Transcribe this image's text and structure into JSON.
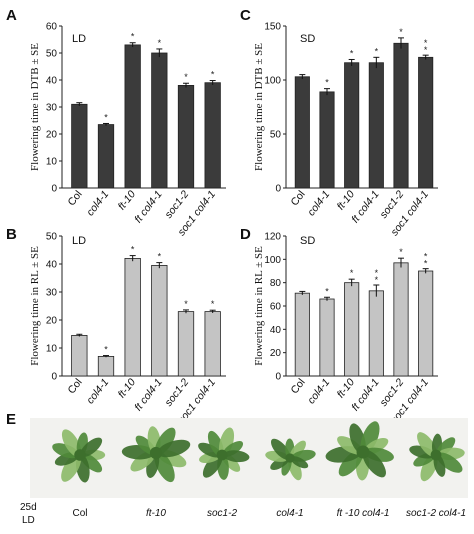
{
  "chart_data": [
    {
      "panel": "A",
      "type": "bar",
      "condition": "LD",
      "ylabel": "Flowering time in DTB ± SE",
      "ylim": [
        0,
        60
      ],
      "yticks": [
        0,
        10,
        20,
        30,
        40,
        50,
        60
      ],
      "categories": [
        {
          "text": "Col",
          "italic": false
        },
        {
          "text": "col4-1",
          "italic": true
        },
        {
          "text": "ft-10",
          "italic": true
        },
        {
          "text": "ft col4-1",
          "italic": true
        },
        {
          "text": "soc1-2",
          "italic": true
        },
        {
          "text": "soc1 col4-1",
          "italic": true
        }
      ],
      "values": [
        31,
        23.5,
        53,
        50,
        38,
        39
      ],
      "errors": [
        0.6,
        0.4,
        0.8,
        1.5,
        0.8,
        0.8
      ],
      "annotations": [
        "",
        "*",
        "*",
        "*",
        "*",
        "*"
      ],
      "color": "#3b3b3b"
    },
    {
      "panel": "C",
      "type": "bar",
      "condition": "SD",
      "ylabel": "Flowering time in DTB ± SE",
      "ylim": [
        0,
        150
      ],
      "yticks": [
        0,
        50,
        100,
        150
      ],
      "categories": [
        {
          "text": "Col",
          "italic": false
        },
        {
          "text": "col4-1",
          "italic": true
        },
        {
          "text": "ft-10",
          "italic": true
        },
        {
          "text": "ft col4-1",
          "italic": true
        },
        {
          "text": "soc1-2",
          "italic": true
        },
        {
          "text": "soc1 col4-1",
          "italic": true
        }
      ],
      "values": [
        103,
        89,
        116,
        116,
        134,
        121
      ],
      "errors": [
        2,
        3,
        3,
        5,
        5,
        2
      ],
      "annotations": [
        "",
        "*",
        "*",
        "*",
        "*",
        "**"
      ],
      "color": "#3b3b3b"
    },
    {
      "panel": "B",
      "type": "bar",
      "condition": "LD",
      "ylabel": "Flowering time in RL ± SE",
      "ylim": [
        0,
        50
      ],
      "yticks": [
        0,
        10,
        20,
        30,
        40,
        50
      ],
      "categories": [
        {
          "text": "Col",
          "italic": false
        },
        {
          "text": "col4-1",
          "italic": true
        },
        {
          "text": "ft-10",
          "italic": true
        },
        {
          "text": "ft col4-1",
          "italic": true
        },
        {
          "text": "soc1-2",
          "italic": true
        },
        {
          "text": "soc1 col4-1",
          "italic": true
        }
      ],
      "values": [
        14.5,
        7,
        42,
        39.5,
        23,
        23
      ],
      "errors": [
        0.4,
        0.3,
        1.0,
        1.0,
        0.6,
        0.5
      ],
      "annotations": [
        "",
        "*",
        "*",
        "*",
        "*",
        "*"
      ],
      "color": "#c4c4c4"
    },
    {
      "panel": "D",
      "type": "bar",
      "condition": "SD",
      "ylabel": "Flowering time in RL ± SE",
      "ylim": [
        0,
        120
      ],
      "yticks": [
        0,
        20,
        40,
        60,
        80,
        100,
        120
      ],
      "categories": [
        {
          "text": "Col",
          "italic": false
        },
        {
          "text": "col4-1",
          "italic": true
        },
        {
          "text": "ft-10",
          "italic": true
        },
        {
          "text": "ft col4-1",
          "italic": true
        },
        {
          "text": "soc1-2",
          "italic": true
        },
        {
          "text": "soc1 col4-1",
          "italic": true
        }
      ],
      "values": [
        71,
        66,
        80,
        73,
        97,
        90
      ],
      "errors": [
        1.5,
        1.5,
        3,
        5,
        4,
        2
      ],
      "annotations": [
        "",
        "*",
        "*",
        "**",
        "*",
        "**"
      ],
      "color": "#c4c4c4"
    }
  ],
  "photo_panel": {
    "letter": "E",
    "age": "25d",
    "condition": "LD",
    "genotypes": [
      {
        "text": "Col",
        "italic": false
      },
      {
        "text": "ft-10",
        "italic": true
      },
      {
        "text": "soc1-2",
        "italic": true
      },
      {
        "text": "col4-1",
        "italic": true
      },
      {
        "text": "ft -10 col4-1",
        "italic": true
      },
      {
        "text": "soc1-2 col4-1",
        "italic": true
      }
    ],
    "colors": {
      "rosette": "#4f8a3a",
      "leaf_dark": "#3d6f2c",
      "leaf_light": "#8dbb6a",
      "background": "#f2f2ef"
    }
  }
}
